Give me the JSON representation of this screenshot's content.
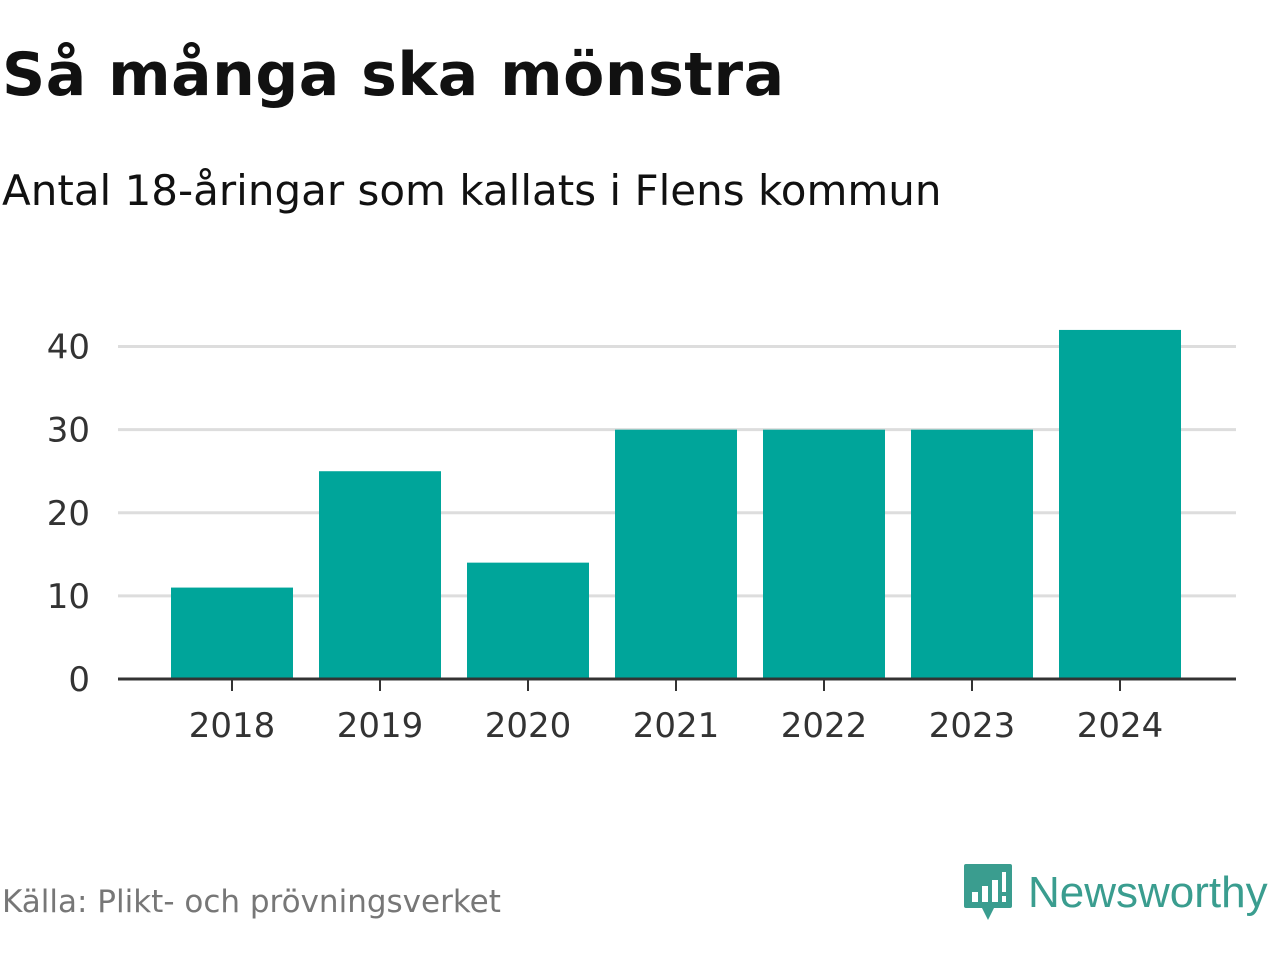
{
  "header": {
    "title": "Så många ska mönstra",
    "subtitle": "Antal 18-åringar som kallats i Flens kommun"
  },
  "footer": {
    "source": "Källa: Plikt- och prövningsverket",
    "brand": "Newsworthy"
  },
  "colors": {
    "bar": "#00a59a",
    "grid": "#dddddd",
    "axis": "#333333",
    "brand": "#3a9d8f"
  },
  "chart_data": {
    "type": "bar",
    "title": "Så många ska mönstra",
    "subtitle": "Antal 18-åringar som kallats i Flens kommun",
    "categories": [
      "2018",
      "2019",
      "2020",
      "2021",
      "2022",
      "2023",
      "2024"
    ],
    "values": [
      11,
      25,
      14,
      30,
      30,
      30,
      42
    ],
    "ylim": [
      0,
      45
    ],
    "yticks": [
      0,
      10,
      20,
      30,
      40
    ],
    "grid": true,
    "legend": "none"
  }
}
